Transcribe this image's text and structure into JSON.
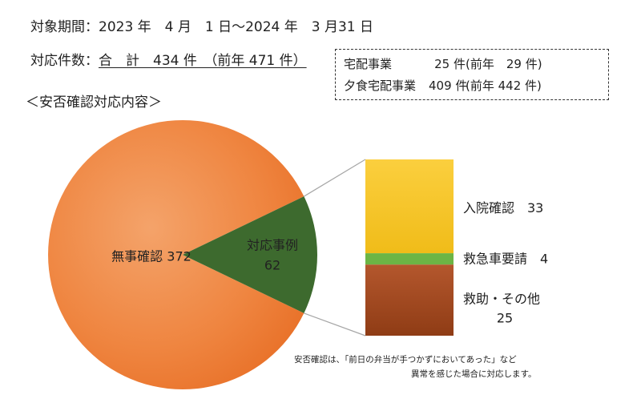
{
  "header": {
    "period_label": "対象期間：2023 年　4 月　1 日～2024 年　3 月31 日",
    "count_label": "対応件数：",
    "count_total": "合　計　434 件　（前年 471 件）",
    "section_title": "＜安否確認対応内容＞"
  },
  "breakdown": [
    {
      "name": "宅配事業",
      "count": "25 件",
      "prev": "(前年　29 件)"
    },
    {
      "name": "夕食宅配事業",
      "count": "409 件",
      "prev": "(前年 442 件)"
    }
  ],
  "chart_data": {
    "type": "pie",
    "title": "",
    "slices": [
      {
        "label": "無事確認",
        "value": 372,
        "color": "#ee7d31"
      },
      {
        "label": "対応事例",
        "value": 62,
        "color": "#3d6a2e"
      }
    ],
    "detail_bar": {
      "type": "stacked-bar",
      "of": "対応事例",
      "segments": [
        {
          "label": "入院確認",
          "value": 33,
          "color": "#f7c32e"
        },
        {
          "label": "救急車要請",
          "value": 4,
          "color": "#6cb545"
        },
        {
          "label": "救助・その他",
          "value": 25,
          "color": "#a64e26"
        }
      ]
    },
    "labels": {
      "safe": "無事確認 372",
      "case_name": "対応事例",
      "case_value": "62",
      "seg0": "入院確認　33",
      "seg1": "救急車要請　4",
      "seg2_name": "救助・その他",
      "seg2_value": "25"
    }
  },
  "note": {
    "line1": "安否確認は、「前日の弁当が手つかずにおいてあった」など",
    "line2": "異常を感じた場合に対応します。"
  }
}
